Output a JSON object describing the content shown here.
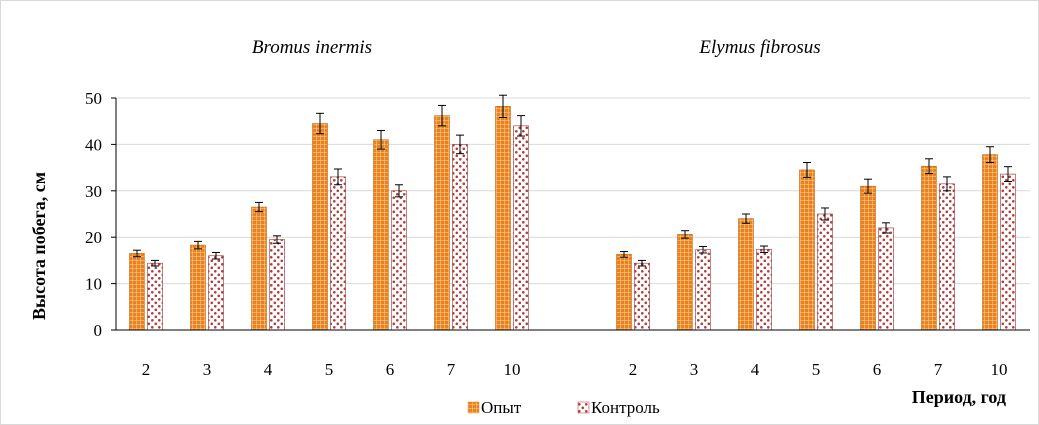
{
  "chart_data": {
    "type": "bar",
    "ylabel": "Высота побега, см",
    "xlabel": "Период, год",
    "ylim": [
      0,
      50
    ],
    "yticks": [
      0,
      10,
      20,
      30,
      40,
      50
    ],
    "grid": true,
    "legend_position": "bottom",
    "series_meta": [
      {
        "name": "Опыт",
        "color": "#e8821e",
        "pattern": "grid"
      },
      {
        "name": "Контроль",
        "color": "#b5383a",
        "pattern": "dots"
      }
    ],
    "groups": [
      {
        "title": "Bromus inermis",
        "categories": [
          "2",
          "3",
          "4",
          "5",
          "6",
          "7",
          "10"
        ],
        "series": [
          {
            "name": "Опыт",
            "values": [
              16.5,
              18.3,
              26.5,
              44.5,
              41,
              46.2,
              48.2
            ],
            "errors": [
              0.7,
              0.8,
              1.0,
              2.2,
              2.0,
              2.2,
              2.4
            ]
          },
          {
            "name": "Контроль",
            "values": [
              14.4,
              16,
              19.5,
              33,
              30,
              40,
              44
            ],
            "errors": [
              0.6,
              0.7,
              0.8,
              1.7,
              1.3,
              2.0,
              2.2
            ]
          }
        ]
      },
      {
        "title": "Elymus fibrosus",
        "categories": [
          "2",
          "3",
          "4",
          "5",
          "6",
          "7",
          "10"
        ],
        "series": [
          {
            "name": "Опыт",
            "values": [
              16.3,
              20.6,
              24,
              34.5,
              31,
              35.3,
              37.8
            ],
            "errors": [
              0.6,
              0.8,
              1.0,
              1.6,
              1.5,
              1.6,
              1.7
            ]
          },
          {
            "name": "Контроль",
            "values": [
              14.4,
              17.3,
              17.4,
              25,
              22,
              31.5,
              33.6
            ],
            "errors": [
              0.6,
              0.7,
              0.7,
              1.3,
              1.1,
              1.5,
              1.6
            ]
          }
        ]
      }
    ]
  }
}
